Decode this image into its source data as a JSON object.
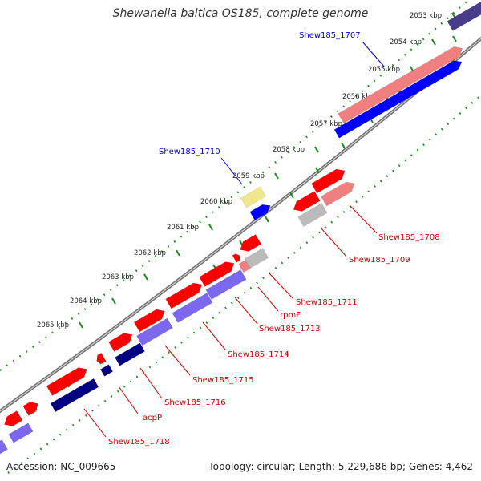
{
  "title": "Shewanella baltica OS185, complete genome",
  "footer": {
    "accession": "Accession: NC_009665",
    "summary": "Topology: circular; Length: 5,229,686 bp; Genes: 4,462"
  },
  "colors": {
    "backbone": "#8a8a8a",
    "tick_track": "#1a8a1a",
    "label_blue": "#0000cc",
    "label_red": "#cc0000",
    "feature_red": "#ff0000",
    "feature_pink": "#f08080",
    "feature_blue": "#0000ff",
    "feature_navy": "#000080",
    "feature_purple": "#7b68ee",
    "feature_gray": "#bbbbbb",
    "feature_yellow": "#f0e68c",
    "feature_darkslate": "#483d8b"
  },
  "tick_labels": [
    "2053 kbp",
    "2054 kbp",
    "2055 kbp",
    "2056 kbp",
    "2057 kbp",
    "2058 kbp",
    "2059 kbp",
    "2060 kbp",
    "2061 kbp",
    "2062 kbp",
    "2063 kbp",
    "2064 kbp",
    "2065 kbp"
  ],
  "gene_labels": [
    {
      "text": "Shew185_1707",
      "color": "blue"
    },
    {
      "text": "Shew185_1710",
      "color": "blue"
    },
    {
      "text": "Shew185_1708",
      "color": "red"
    },
    {
      "text": "Shew185_1709",
      "color": "red"
    },
    {
      "text": "Shew185_1711",
      "color": "red"
    },
    {
      "text": "rpmF",
      "color": "red"
    },
    {
      "text": "Shew185_1713",
      "color": "red"
    },
    {
      "text": "Shew185_1714",
      "color": "red"
    },
    {
      "text": "Shew185_1715",
      "color": "red"
    },
    {
      "text": "Shew185_1716",
      "color": "red"
    },
    {
      "text": "acpP",
      "color": "red"
    },
    {
      "text": "Shew185_1718",
      "color": "red"
    }
  ]
}
